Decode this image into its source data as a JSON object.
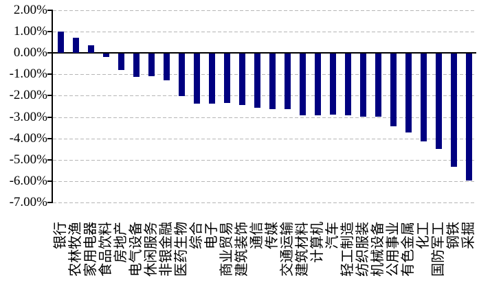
{
  "chart_data": {
    "type": "bar",
    "title": "",
    "categories": [
      "银行",
      "农林牧渔",
      "家用电器",
      "食品饮料",
      "房地产",
      "电气设备",
      "休闲服务",
      "非银金融",
      "医药生物",
      "综合",
      "电子",
      "商业贸易",
      "建筑装饰",
      "通信",
      "传媒",
      "交通运输",
      "建筑材料",
      "计算机",
      "汽车",
      "轻工制造",
      "纺织服装",
      "机械设备",
      "公用事业",
      "有色金属",
      "化工",
      "国防军工",
      "钢铁",
      "采掘"
    ],
    "values": [
      1.0,
      0.7,
      0.35,
      -0.15,
      -0.75,
      -1.1,
      -1.05,
      -1.25,
      -2.0,
      -2.35,
      -2.35,
      -2.3,
      -2.4,
      -2.55,
      -2.6,
      -2.6,
      -2.9,
      -2.9,
      -2.85,
      -2.9,
      -2.95,
      -2.95,
      -3.4,
      -3.7,
      -4.1,
      -4.45,
      -5.3,
      -5.95
    ],
    "value_format": "percent",
    "xlabel": "",
    "ylabel": "",
    "ylim": [
      -7,
      2
    ],
    "ytick_step": 1,
    "ytick_labels": [
      "2.00%",
      "1.00%",
      "0.00%",
      "-1.00%",
      "-2.00%",
      "-3.00%",
      "-4.00%",
      "-5.00%",
      "-6.00%",
      "-7.00%"
    ],
    "xtick_rotation_degrees": 90,
    "grid": "horizontal dashed",
    "legend_position": "none",
    "colors": {
      "bar": "#000080",
      "gridline": "#b5b5b5",
      "axis": "#000000",
      "text": "#000000",
      "background": "#ffffff"
    }
  }
}
